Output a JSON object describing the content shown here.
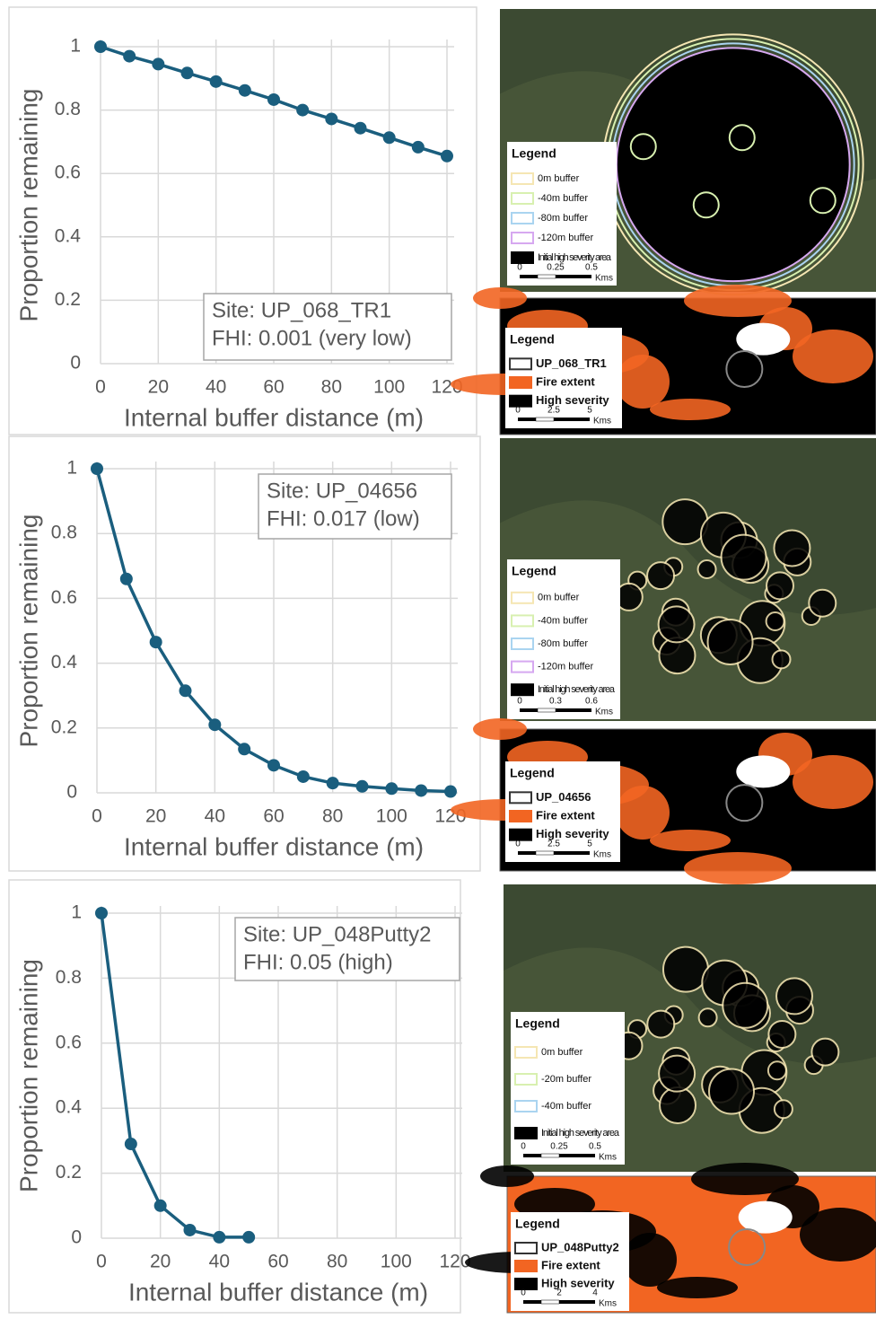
{
  "chart_data": [
    {
      "type": "line",
      "x_label": "Internal buffer distance (m)",
      "y_label": "Proportion remaining",
      "x": [
        0,
        10,
        20,
        30,
        40,
        50,
        60,
        70,
        80,
        90,
        100,
        110,
        120
      ],
      "values": [
        1,
        0.97,
        0.945,
        0.917,
        0.89,
        0.862,
        0.833,
        0.8,
        0.772,
        0.743,
        0.713,
        0.683,
        0.655
      ],
      "color": "#1a5e7e",
      "xlim": [
        0,
        120
      ],
      "ylim": [
        0,
        1
      ],
      "xticks": [
        0,
        20,
        40,
        60,
        80,
        100,
        120
      ],
      "yticks": [
        0,
        0.2,
        0.4,
        0.6,
        0.8,
        1
      ],
      "grid": true,
      "annotations": [
        "Site: UP_068_TR1",
        "FHI: 0.001 (very low)"
      ]
    },
    {
      "type": "line",
      "x_label": "Internal buffer distance (m)",
      "y_label": "Proportion remaining",
      "x": [
        0,
        10,
        20,
        30,
        40,
        50,
        60,
        70,
        80,
        90,
        100,
        110,
        120
      ],
      "values": [
        1,
        0.66,
        0.465,
        0.315,
        0.21,
        0.135,
        0.085,
        0.05,
        0.03,
        0.02,
        0.013,
        0.007,
        0.004
      ],
      "color": "#1a5e7e",
      "xlim": [
        0,
        120
      ],
      "ylim": [
        0,
        1
      ],
      "xticks": [
        0,
        20,
        40,
        60,
        80,
        100,
        120
      ],
      "yticks": [
        0,
        0.2,
        0.4,
        0.6,
        0.8,
        1
      ],
      "grid": true,
      "annotations": [
        "Site: UP_04656",
        "FHI: 0.017 (low)"
      ]
    },
    {
      "type": "line",
      "x_label": "Internal buffer distance (m)",
      "y_label": "Proportion remaining",
      "x": [
        0,
        10,
        20,
        30,
        40,
        50
      ],
      "values": [
        1,
        0.29,
        0.1,
        0.025,
        0.003,
        0.003
      ],
      "color": "#1a5e7e",
      "xlim": [
        0,
        120
      ],
      "ylim": [
        0,
        1
      ],
      "xticks": [
        0,
        20,
        40,
        60,
        80,
        100,
        120
      ],
      "yticks": [
        0,
        0.2,
        0.4,
        0.6,
        0.8,
        1
      ],
      "grid": true,
      "annotations": [
        "Site: UP_048Putty2",
        "FHI: 0.05 (high)"
      ]
    }
  ],
  "maps": [
    {
      "buffer_legend": {
        "title": "Legend",
        "items": [
          "0m buffer",
          "-40m buffer",
          "-80m buffer",
          "-120m buffer",
          "Initial high severity area"
        ],
        "colors": [
          "#f5e6b3",
          "#d8f0b0",
          "#aad4f0",
          "#d6a8f0",
          "#000000"
        ],
        "scale": [
          "0",
          "0.25",
          "0.5",
          "Kms"
        ]
      },
      "locator_legend": {
        "title": "Legend",
        "items": [
          "UP_068_TR1",
          "Fire extent",
          "High severity"
        ],
        "colors": [
          "#ffffff",
          "#f26522",
          "#000000"
        ],
        "scale": [
          "0",
          "2.5",
          "5",
          "Kms"
        ]
      }
    },
    {
      "buffer_legend": {
        "title": "Legend",
        "items": [
          "0m buffer",
          "-40m buffer",
          "-80m buffer",
          "-120m buffer",
          "Initial high severity area"
        ],
        "colors": [
          "#f5e6b3",
          "#d8f0b0",
          "#aad4f0",
          "#d6a8f0",
          "#000000"
        ],
        "scale": [
          "0",
          "0.3",
          "0.6",
          "Kms"
        ]
      },
      "locator_legend": {
        "title": "Legend",
        "items": [
          "UP_04656",
          "Fire extent",
          "High severity"
        ],
        "colors": [
          "#ffffff",
          "#f26522",
          "#000000"
        ],
        "scale": [
          "0",
          "2.5",
          "5",
          "Kms"
        ]
      }
    },
    {
      "buffer_legend": {
        "title": "Legend",
        "items": [
          "0m buffer",
          "-20m buffer",
          "-40m buffer",
          "Initial high severity area"
        ],
        "colors": [
          "#f5e6b3",
          "#d8f0b0",
          "#aad4f0",
          "#000000"
        ],
        "scale": [
          "0",
          "0.25",
          "0.5",
          "Kms"
        ]
      },
      "locator_legend": {
        "title": "Legend",
        "items": [
          "UP_048Putty2",
          "Fire extent",
          "High severity"
        ],
        "colors": [
          "#ffffff",
          "#f26522",
          "#000000"
        ],
        "scale": [
          "0",
          "2",
          "4",
          "Kms"
        ]
      }
    }
  ]
}
